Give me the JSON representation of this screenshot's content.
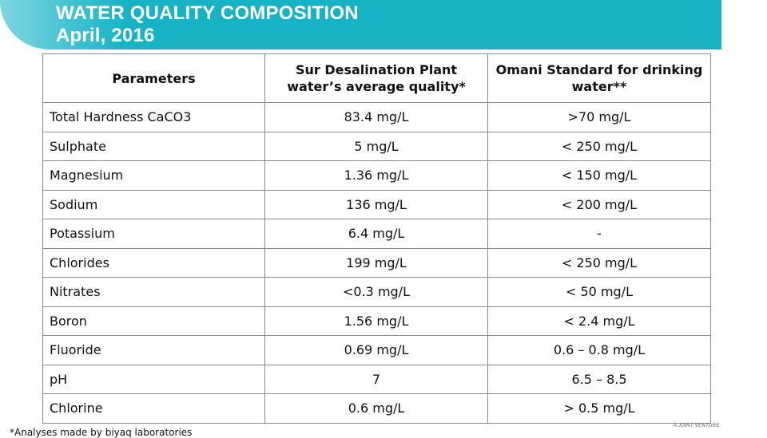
{
  "header": {
    "title": "WATER QUALITY COMPOSITION",
    "subtitle": "April, 2016",
    "accent_color": "#15b3c4"
  },
  "table": {
    "headers": [
      "Parameters",
      "Sur Desalination Plant water’s average quality*",
      "Omani Standard for drinking water**"
    ],
    "rows": [
      [
        "Total Hardness CaCO3",
        "83.4 mg/L",
        ">70 mg/L"
      ],
      [
        "Sulphate",
        "5 mg/L",
        "< 250 mg/L"
      ],
      [
        "Magnesium",
        "1.36 mg/L",
        "< 150 mg/L"
      ],
      [
        "Sodium",
        "136 mg/L",
        "< 200 mg/L"
      ],
      [
        "Potassium",
        "6.4 mg/L",
        "-"
      ],
      [
        "Chlorides",
        "199 mg/L",
        "< 250 mg/L"
      ],
      [
        "Nitrates",
        "<0.3 mg/L",
        "< 50 mg/L"
      ],
      [
        "Boron",
        "1.56 mg/L",
        "< 2.4 mg/L"
      ],
      [
        "Fluoride",
        "0.69 mg/L",
        "0.6 – 0.8 mg/L"
      ],
      [
        "pH",
        "7",
        "6.5 – 8.5"
      ],
      [
        "Chlorine",
        "0.6 mg/L",
        "> 0.5 mg/L"
      ]
    ]
  },
  "footnote": "*Analyses made by biyaq laboratories",
  "joint_venture_label": "A JOINT VENTURE"
}
